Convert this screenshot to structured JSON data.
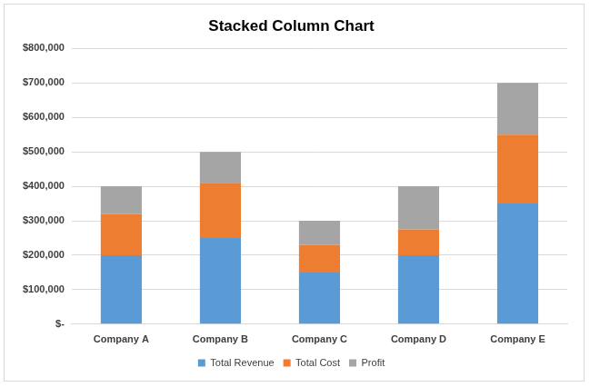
{
  "chart_data": {
    "type": "bar",
    "title": "Stacked Column Chart",
    "categories": [
      "Company A",
      "Company B",
      "Company C",
      "Company D",
      "Company E"
    ],
    "series": [
      {
        "name": "Total Revenue",
        "color": "#5b9bd5",
        "values": [
          200000,
          250000,
          150000,
          200000,
          350000
        ]
      },
      {
        "name": "Total Cost",
        "color": "#ed7d31",
        "values": [
          120000,
          160000,
          80000,
          75000,
          200000
        ]
      },
      {
        "name": "Profit",
        "color": "#a5a5a5",
        "values": [
          80000,
          90000,
          70000,
          125000,
          150000
        ]
      }
    ],
    "stacked": true,
    "ylim": [
      0,
      800000
    ],
    "yticks": [
      {
        "value": 0,
        "label": "$-"
      },
      {
        "value": 100000,
        "label": "$100,000"
      },
      {
        "value": 200000,
        "label": "$200,000"
      },
      {
        "value": 300000,
        "label": "$300,000"
      },
      {
        "value": 400000,
        "label": "$400,000"
      },
      {
        "value": 500000,
        "label": "$500,000"
      },
      {
        "value": 600000,
        "label": "$600,000"
      },
      {
        "value": 700000,
        "label": "$700,000"
      },
      {
        "value": 800000,
        "label": "$800,000"
      }
    ],
    "grid": true,
    "legend": "bottom"
  }
}
